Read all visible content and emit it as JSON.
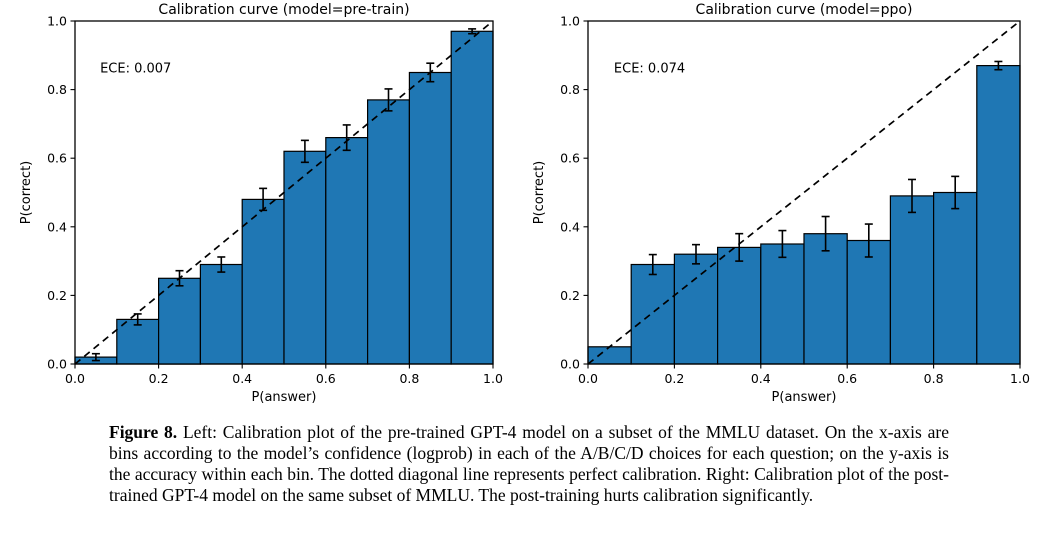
{
  "figure_caption": {
    "label": "Figure 8.",
    "text": " Left: Calibration plot of the pre-trained GPT-4 model on a subset of the MMLU dataset. On the x-axis are bins according to the model’s confidence (logprob) in each of the A/B/C/D choices for each question; on the y-axis is the accuracy within each bin. The dotted diagonal line represents perfect calibration. Right: Calibration plot of the post-trained GPT-4 model on the same subset of MMLU. The post-training hurts calibration significantly."
  },
  "chart_data": [
    {
      "type": "bar",
      "title": "Calibration curve (model=pre-train)",
      "annotation": "ECE: 0.007",
      "xlabel": "P(answer)",
      "ylabel": "P(correct)",
      "xlim": [
        0.0,
        1.0
      ],
      "ylim": [
        0.0,
        1.0
      ],
      "xticks": [
        0.0,
        0.2,
        0.4,
        0.6,
        0.8,
        1.0
      ],
      "yticks": [
        0.0,
        0.2,
        0.4,
        0.6,
        0.8,
        1.0
      ],
      "bin_edges": [
        0.0,
        0.1,
        0.2,
        0.3,
        0.4,
        0.5,
        0.6,
        0.7,
        0.8,
        0.9,
        1.0
      ],
      "values": [
        0.02,
        0.13,
        0.25,
        0.29,
        0.48,
        0.62,
        0.66,
        0.77,
        0.85,
        0.97
      ],
      "errors": [
        0.01,
        0.016,
        0.022,
        0.022,
        0.032,
        0.032,
        0.037,
        0.032,
        0.027,
        0.007
      ],
      "bar_color": "#1f77b4",
      "bar_edge_color": "#000000",
      "error_color": "#000000",
      "diagonal": {
        "style": "dashed",
        "from": [
          0,
          0
        ],
        "to": [
          1,
          1
        ],
        "color": "#000000"
      },
      "grid": false,
      "legend": null
    },
    {
      "type": "bar",
      "title": "Calibration curve (model=ppo)",
      "annotation": "ECE: 0.074",
      "xlabel": "P(answer)",
      "ylabel": "P(correct)",
      "xlim": [
        0.0,
        1.0
      ],
      "ylim": [
        0.0,
        1.0
      ],
      "xticks": [
        0.0,
        0.2,
        0.4,
        0.6,
        0.8,
        1.0
      ],
      "yticks": [
        0.0,
        0.2,
        0.4,
        0.6,
        0.8,
        1.0
      ],
      "bin_edges": [
        0.0,
        0.1,
        0.2,
        0.3,
        0.4,
        0.5,
        0.6,
        0.7,
        0.8,
        0.9,
        1.0
      ],
      "values": [
        0.05,
        0.29,
        0.32,
        0.34,
        0.35,
        0.38,
        0.36,
        0.49,
        0.5,
        0.87
      ],
      "errors": [
        0,
        0.029,
        0.028,
        0.04,
        0.039,
        0.05,
        0.048,
        0.048,
        0.047,
        0.012
      ],
      "bar_color": "#1f77b4",
      "bar_edge_color": "#000000",
      "error_color": "#000000",
      "diagonal": {
        "style": "dashed",
        "from": [
          0,
          0
        ],
        "to": [
          1,
          1
        ],
        "color": "#000000"
      },
      "grid": false,
      "legend": null
    }
  ]
}
